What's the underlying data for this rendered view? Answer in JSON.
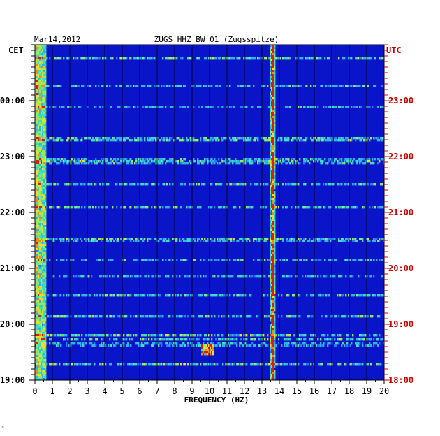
{
  "chart_data": {
    "type": "heatmap",
    "date_label": "Mar14,2012",
    "title": "ZUGS HHZ BW 01 (Zugsspitze)",
    "left_axis_label": "CET",
    "right_axis_label": "UTC",
    "xlabel": "FREQUENCY (HZ)",
    "x_ticks": [
      "0",
      "1",
      "2",
      "3",
      "4",
      "5",
      "6",
      "7",
      "8",
      "9",
      "10",
      "11",
      "12",
      "13",
      "14",
      "15",
      "16",
      "17",
      "18",
      "19",
      "20"
    ],
    "xlim": [
      0,
      20
    ],
    "left_ticks": [
      "00:00",
      "23:00",
      "22:00",
      "21:00",
      "20:00",
      "19:00"
    ],
    "right_ticks": [
      "23:00",
      "22:00",
      "21:00",
      "20:00",
      "19:00",
      "18:00"
    ],
    "grid": true,
    "colors": {
      "background_blue": "#0a14c8",
      "right_label_red": "#cc0000",
      "text_black": "#000000"
    },
    "features": {
      "persistent_line_hz": 13.6,
      "low_frequency_band_hz": [
        0,
        0.6
      ],
      "transient_event_hz": [
        9.5,
        10.2
      ]
    }
  },
  "footnote_mark": "*"
}
